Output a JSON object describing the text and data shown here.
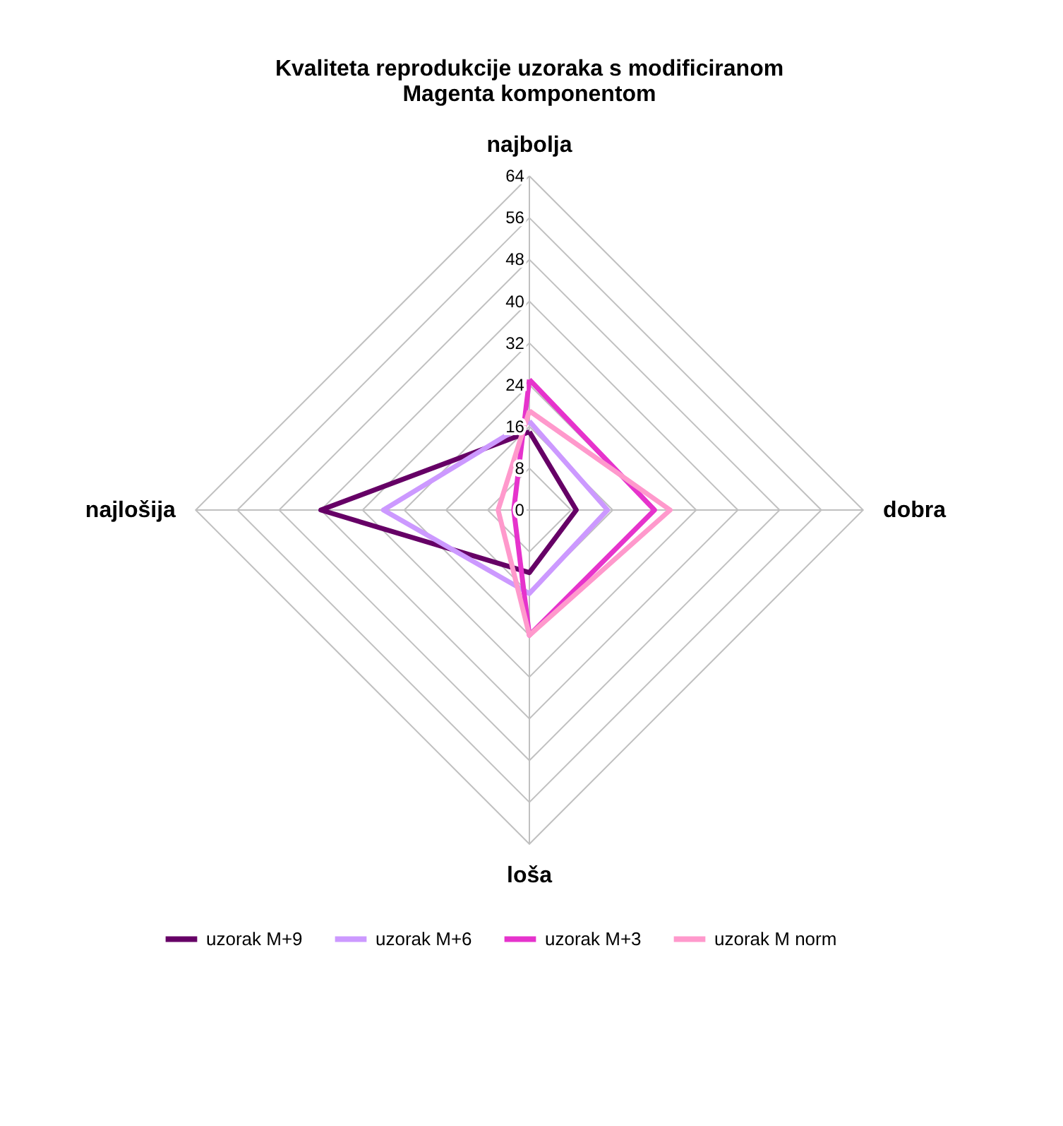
{
  "chart_data": {
    "type": "radar",
    "title": "Kvaliteta reprodukcije uzoraka s modificiranom Magenta komponentom",
    "categories": [
      "najbolja",
      "dobra",
      "loša",
      "najlošija"
    ],
    "series": [
      {
        "name": "uzorak M+9",
        "color": "#660066",
        "values": [
          15,
          9,
          12,
          40
        ]
      },
      {
        "name": "uzorak M+6",
        "color": "#cc99ff",
        "values": [
          17,
          15,
          16,
          28
        ]
      },
      {
        "name": "uzorak M+3",
        "color": "#e633cc",
        "values": [
          25,
          24,
          24,
          3
        ]
      },
      {
        "name": "uzorak M norm",
        "color": "#ff99cc",
        "values": [
          19,
          27,
          24,
          6
        ]
      }
    ],
    "ylim": [
      0,
      64
    ],
    "yticks": [
      0,
      8,
      16,
      24,
      32,
      40,
      48,
      56,
      64
    ],
    "grid": true,
    "legend": "bottom"
  }
}
